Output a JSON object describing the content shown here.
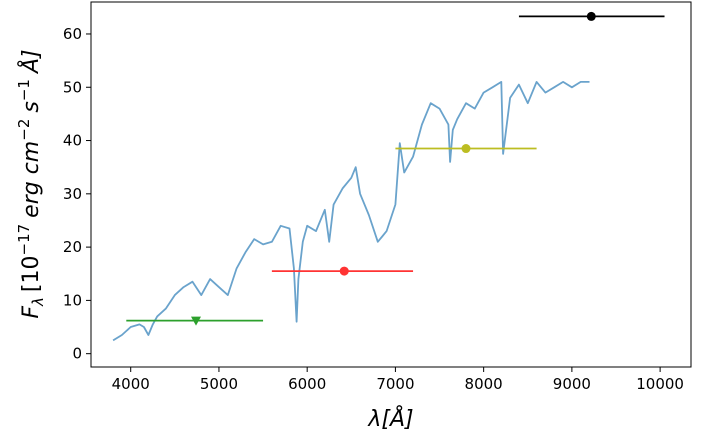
{
  "chart_data": {
    "type": "line",
    "xlabel": "λ[Å]",
    "ylabel_parts": {
      "symbol": "F",
      "sub": "λ",
      "open": "[10",
      "exp1": "−17",
      "unit1": "erg cm",
      "exp2": "−2",
      "unit2": "s",
      "exp3": "−1",
      "unit3": "Å]"
    },
    "xlim": [
      3550,
      10350
    ],
    "ylim": [
      -2.5,
      66
    ],
    "xticks": [
      4000,
      5000,
      6000,
      7000,
      8000,
      9000,
      10000
    ],
    "yticks": [
      0,
      10,
      20,
      30,
      40,
      50,
      60
    ],
    "grid": false,
    "spectrum_color": "#6aa3cc",
    "spectrum": {
      "x": [
        3800,
        3900,
        4000,
        4100,
        4150,
        4200,
        4250,
        4300,
        4400,
        4500,
        4600,
        4700,
        4800,
        4900,
        5000,
        5100,
        5200,
        5300,
        5400,
        5500,
        5600,
        5700,
        5800,
        5850,
        5880,
        5900,
        5950,
        6000,
        6100,
        6200,
        6250,
        6300,
        6400,
        6500,
        6550,
        6600,
        6700,
        6800,
        6850,
        6900,
        7000,
        7050,
        7100,
        7200,
        7300,
        7400,
        7500,
        7600,
        7620,
        7650,
        7700,
        7800,
        7900,
        8000,
        8100,
        8200,
        8220,
        8300,
        8400,
        8500,
        8600,
        8700,
        8800,
        8900,
        9000,
        9100,
        9200
      ],
      "y": [
        2.5,
        3.5,
        5,
        5.5,
        5,
        3.5,
        5.5,
        7,
        8.5,
        11,
        12.5,
        13.5,
        11,
        14,
        12.5,
        11,
        16,
        19,
        21.5,
        20.5,
        21,
        24,
        23.5,
        16,
        6,
        14,
        21,
        24,
        23,
        27,
        21,
        28,
        31,
        33,
        35,
        30,
        26,
        21,
        22,
        23,
        28,
        39.5,
        34,
        37,
        43,
        47,
        46,
        43,
        36,
        42,
        44,
        47,
        46,
        49,
        50,
        51,
        37.5,
        48,
        50.5,
        47,
        51,
        49,
        50,
        51,
        50,
        51,
        51
      ]
    },
    "points": [
      {
        "x": 4740,
        "y": 6.2,
        "x_left": 3950,
        "x_right": 5500,
        "color": "#2ca02c",
        "marker": "triangle"
      },
      {
        "x": 6420,
        "y": 15.5,
        "x_left": 5600,
        "x_right": 7200,
        "color": "#ff3333",
        "marker": "circle"
      },
      {
        "x": 7800,
        "y": 38.5,
        "x_left": 7000,
        "x_right": 8600,
        "color": "#bcbd22",
        "marker": "circle"
      },
      {
        "x": 9220,
        "y": 63.3,
        "x_left": 8400,
        "x_right": 10050,
        "color": "#000000",
        "marker": "circle"
      }
    ]
  }
}
